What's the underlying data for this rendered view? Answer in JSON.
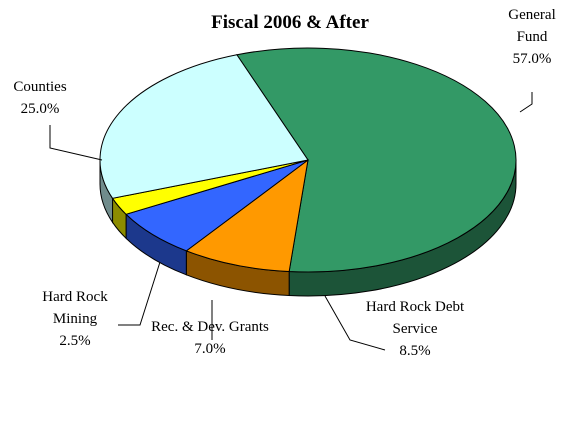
{
  "chart_data": {
    "type": "pie",
    "title": "Fiscal 2006 & After",
    "categories": [
      "General Fund",
      "Hard Rock Debt Service",
      "Rec. & Dev. Grants",
      "Hard Rock Mining",
      "Counties"
    ],
    "values": [
      57,
      8.5,
      7,
      2.5,
      25
    ],
    "value_labels": [
      "57.0%",
      "8.5%",
      "7.0%",
      "2.5%",
      "25.0%"
    ],
    "colors": [
      "#339966",
      "#ff9900",
      "#3366ff",
      "#ffff00",
      "#ccffff"
    ]
  }
}
